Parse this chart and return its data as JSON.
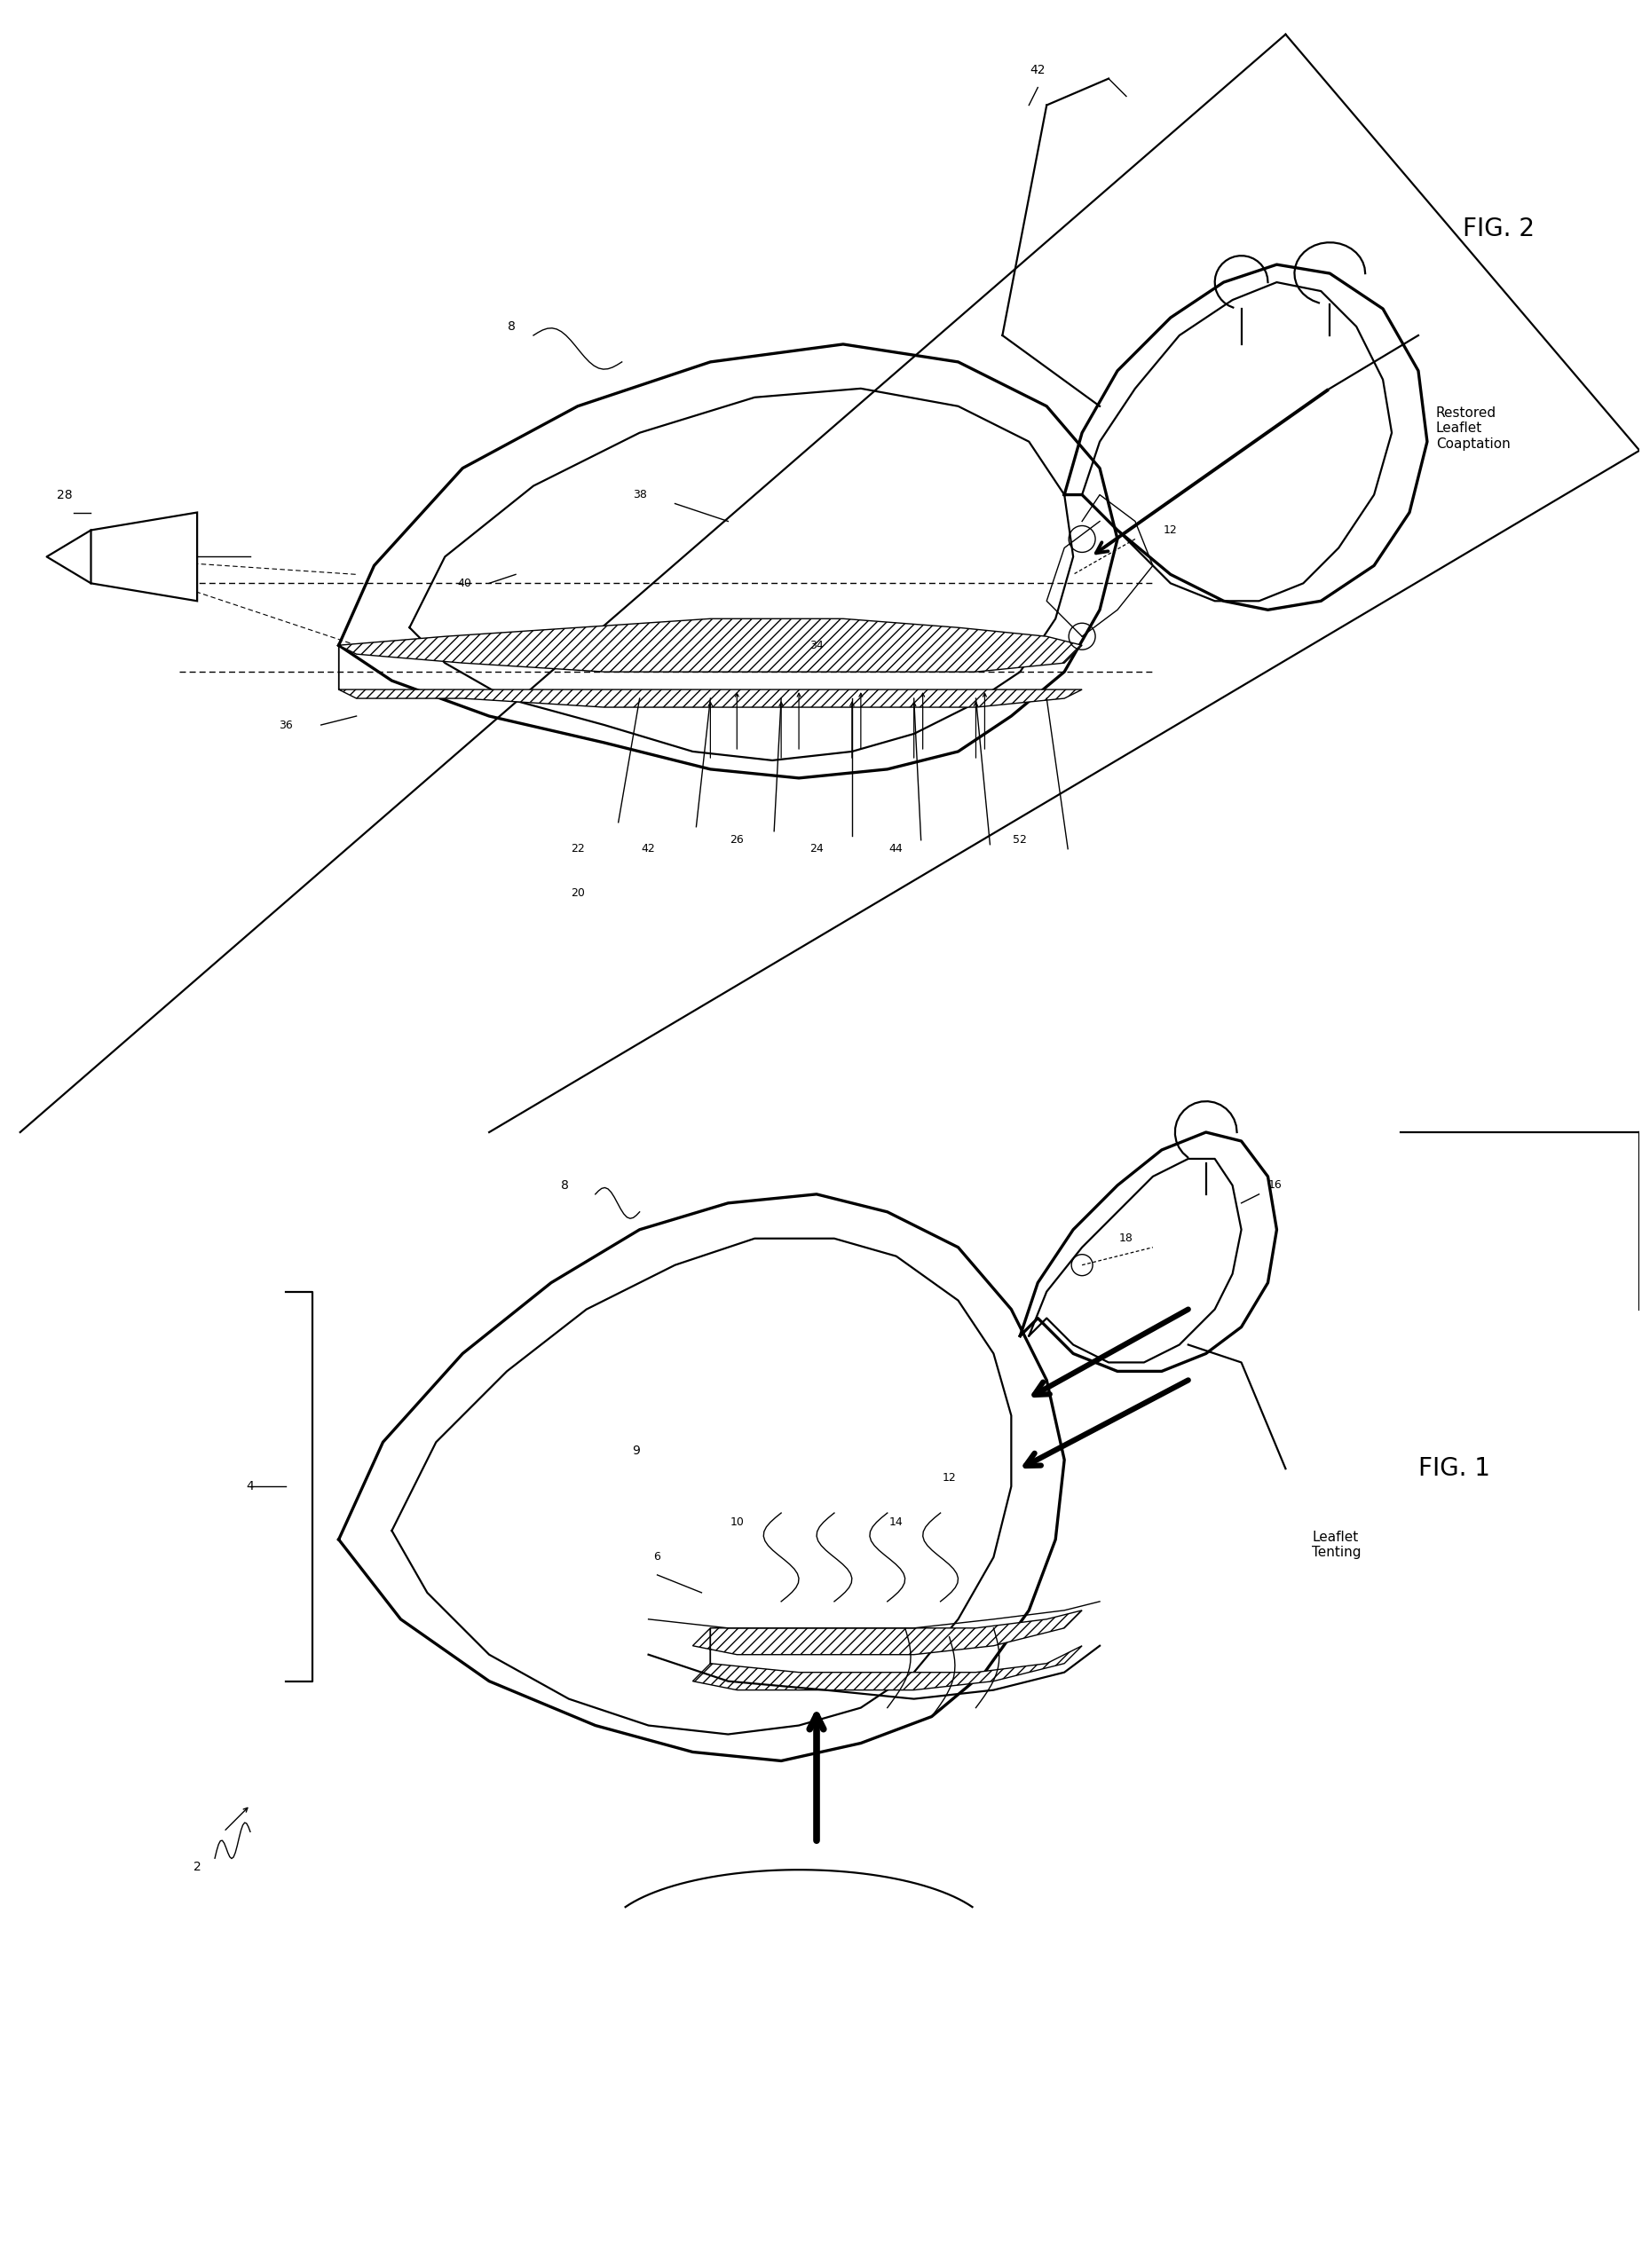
{
  "bg_color": "#ffffff",
  "line_color": "#000000",
  "fig_width": 18.5,
  "fig_height": 25.56,
  "fig2_label": "FIG. 2",
  "fig1_label": "FIG. 1",
  "fig2_annotation": "Restored\nLeaflet\nCoaptation",
  "fig1_annotation": "Leaflet\nTenting"
}
